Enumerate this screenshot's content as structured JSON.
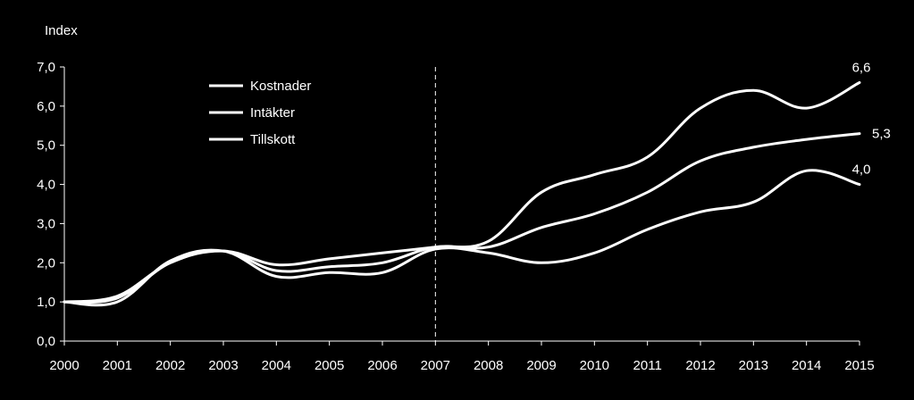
{
  "chart_data": {
    "type": "line",
    "ylabel": "Index",
    "ylim": [
      0,
      7
    ],
    "yticks": [
      "0,0",
      "1,0",
      "2,0",
      "3,0",
      "4,0",
      "5,0",
      "6,0",
      "7,0"
    ],
    "categories": [
      "2000",
      "2001",
      "2002",
      "2003",
      "2004",
      "2005",
      "2006",
      "2007",
      "2008",
      "2009",
      "2010",
      "2011",
      "2012",
      "2013",
      "2014",
      "2015"
    ],
    "reference_line": "2007",
    "legend_position": "top-left",
    "line_color": "#ffffff",
    "background": "#000000",
    "series": [
      {
        "name": "Kostnader",
        "values": [
          1.0,
          1.1,
          2.0,
          2.3,
          1.95,
          2.1,
          2.25,
          2.4,
          2.55,
          3.8,
          4.25,
          4.7,
          5.95,
          6.4,
          5.95,
          6.6
        ],
        "end_label": "6,6"
      },
      {
        "name": "Intäkter",
        "values": [
          1.0,
          1.15,
          2.0,
          2.3,
          1.8,
          1.9,
          2.0,
          2.4,
          2.4,
          2.9,
          3.25,
          3.8,
          4.6,
          4.95,
          5.15,
          5.3
        ],
        "end_label": "5,3"
      },
      {
        "name": "Tillskott",
        "values": [
          1.0,
          1.0,
          2.05,
          2.3,
          1.65,
          1.75,
          1.75,
          2.35,
          2.25,
          2.0,
          2.25,
          2.85,
          3.3,
          3.55,
          4.35,
          4.0
        ],
        "end_label": "4,0"
      }
    ]
  }
}
